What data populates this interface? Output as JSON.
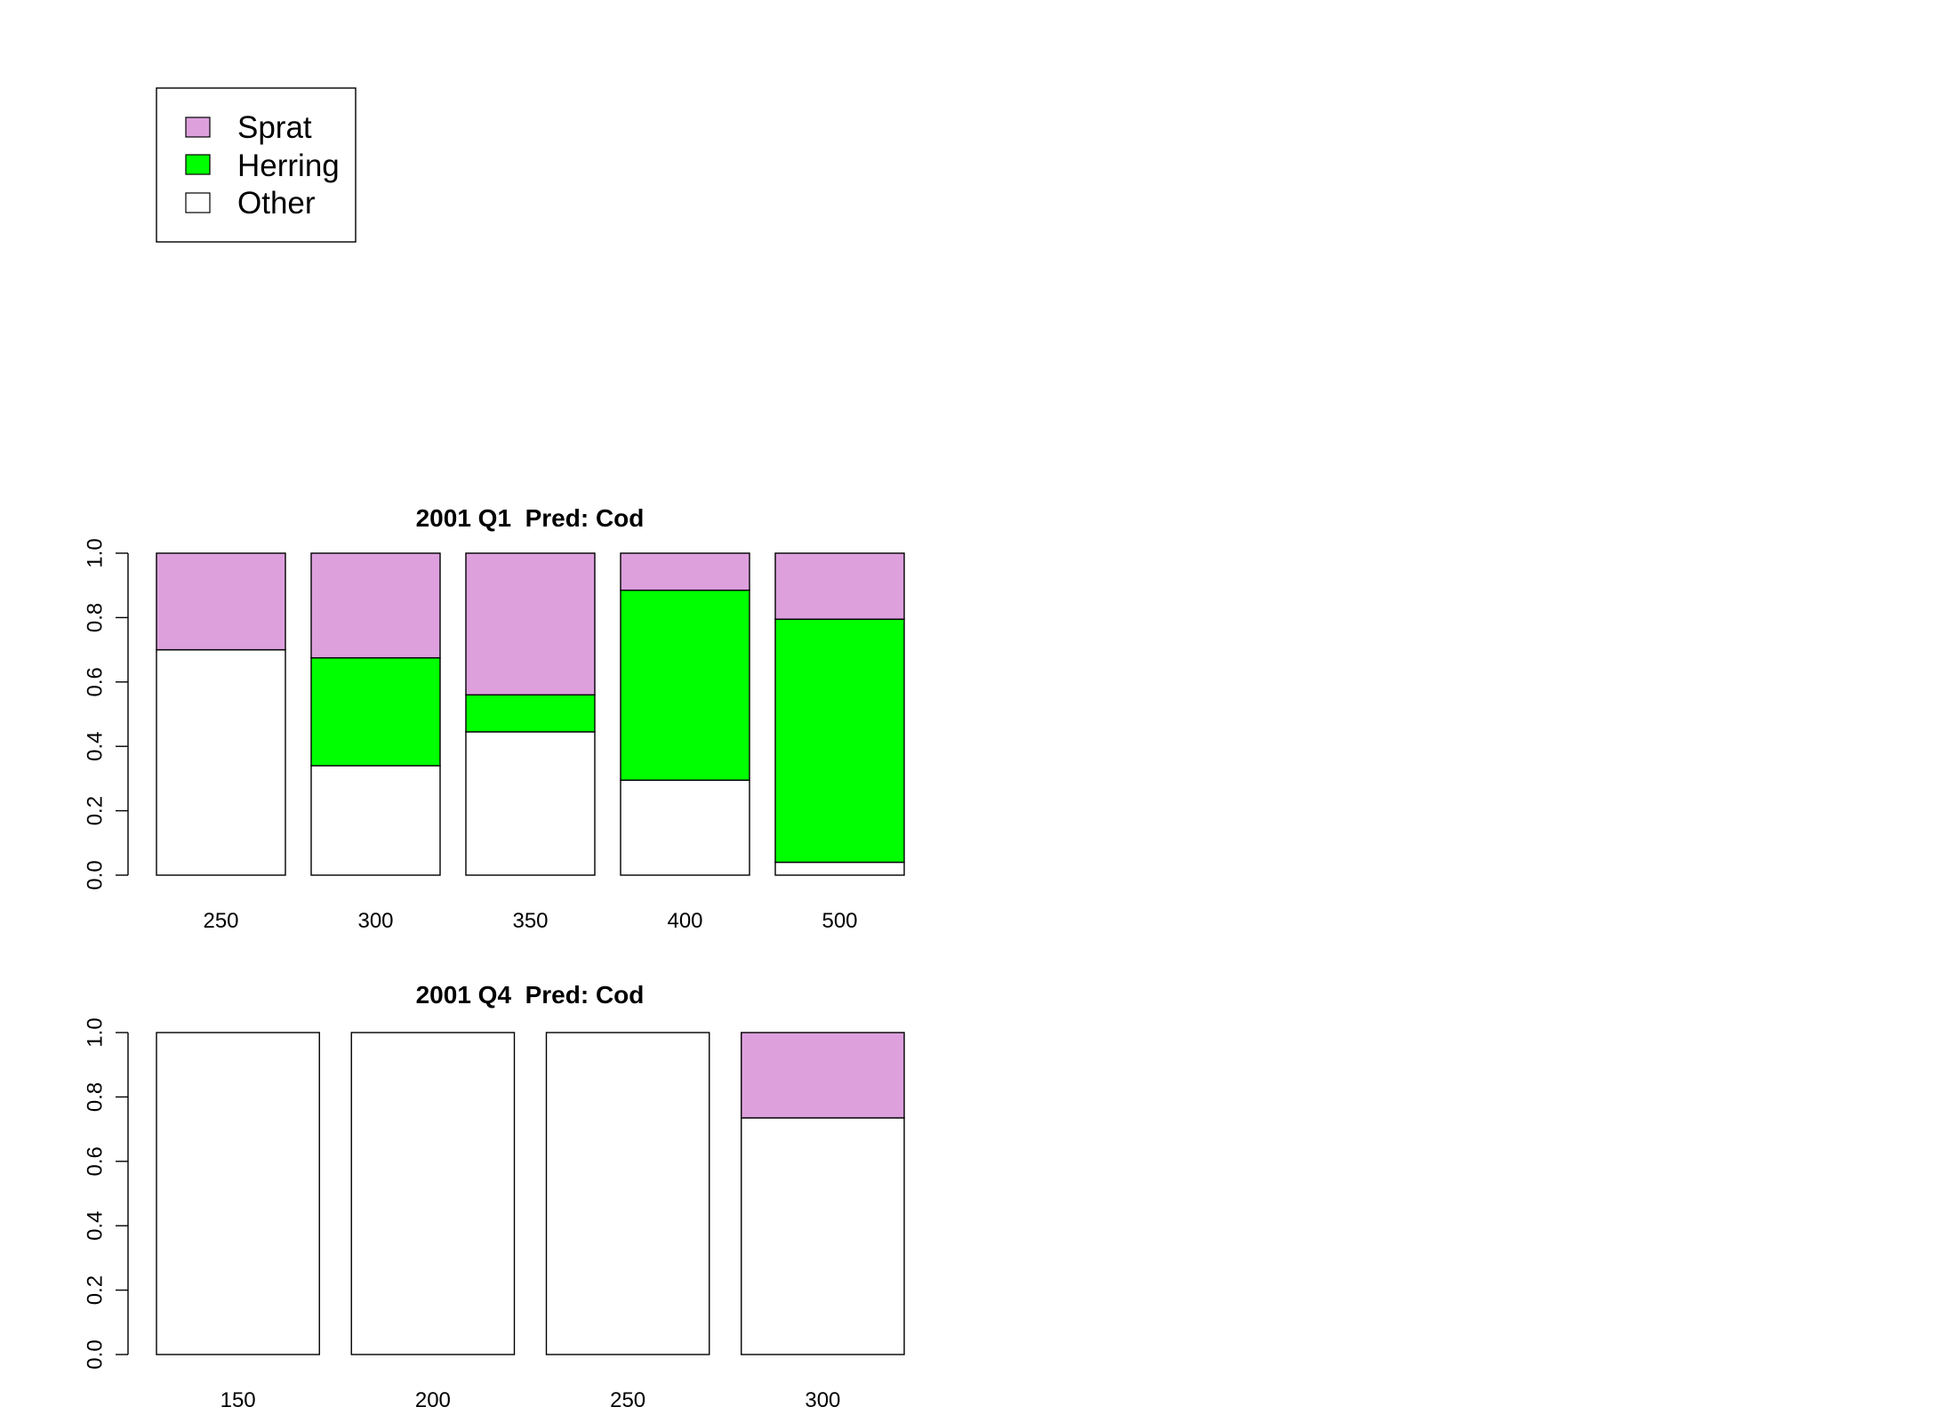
{
  "legend": {
    "entries": [
      {
        "label": "Sprat",
        "color": "#DDA0DD"
      },
      {
        "label": "Herring",
        "color": "#00FF00"
      },
      {
        "label": "Other",
        "color": "#FFFFFF"
      }
    ]
  },
  "chart_data": [
    {
      "type": "bar",
      "stacked": true,
      "title": "2001 Q1  Pred: Cod",
      "xlabel": "",
      "ylabel": "",
      "ylim": [
        0,
        1
      ],
      "yticks": [
        "0.0",
        "0.2",
        "0.4",
        "0.6",
        "0.8",
        "1.0"
      ],
      "categories": [
        "250",
        "300",
        "350",
        "400",
        "500"
      ],
      "series": [
        {
          "name": "Other",
          "color": "#FFFFFF",
          "values": [
            0.7,
            0.34,
            0.445,
            0.295,
            0.04
          ]
        },
        {
          "name": "Herring",
          "color": "#00FF00",
          "values": [
            0.0,
            0.335,
            0.115,
            0.59,
            0.755
          ]
        },
        {
          "name": "Sprat",
          "color": "#DDA0DD",
          "values": [
            0.3,
            0.325,
            0.44,
            0.115,
            0.205
          ]
        }
      ]
    },
    {
      "type": "bar",
      "stacked": true,
      "title": "2001 Q4  Pred: Cod",
      "xlabel": "",
      "ylabel": "",
      "ylim": [
        0,
        1
      ],
      "yticks": [
        "0.0",
        "0.2",
        "0.4",
        "0.6",
        "0.8",
        "1.0"
      ],
      "categories": [
        "150",
        "200",
        "250",
        "300"
      ],
      "series": [
        {
          "name": "Other",
          "color": "#FFFFFF",
          "values": [
            1.0,
            1.0,
            1.0,
            0.735
          ]
        },
        {
          "name": "Herring",
          "color": "#00FF00",
          "values": [
            0.0,
            0.0,
            0.0,
            0.0
          ]
        },
        {
          "name": "Sprat",
          "color": "#DDA0DD",
          "values": [
            0.0,
            0.0,
            0.0,
            0.265
          ]
        }
      ]
    }
  ]
}
